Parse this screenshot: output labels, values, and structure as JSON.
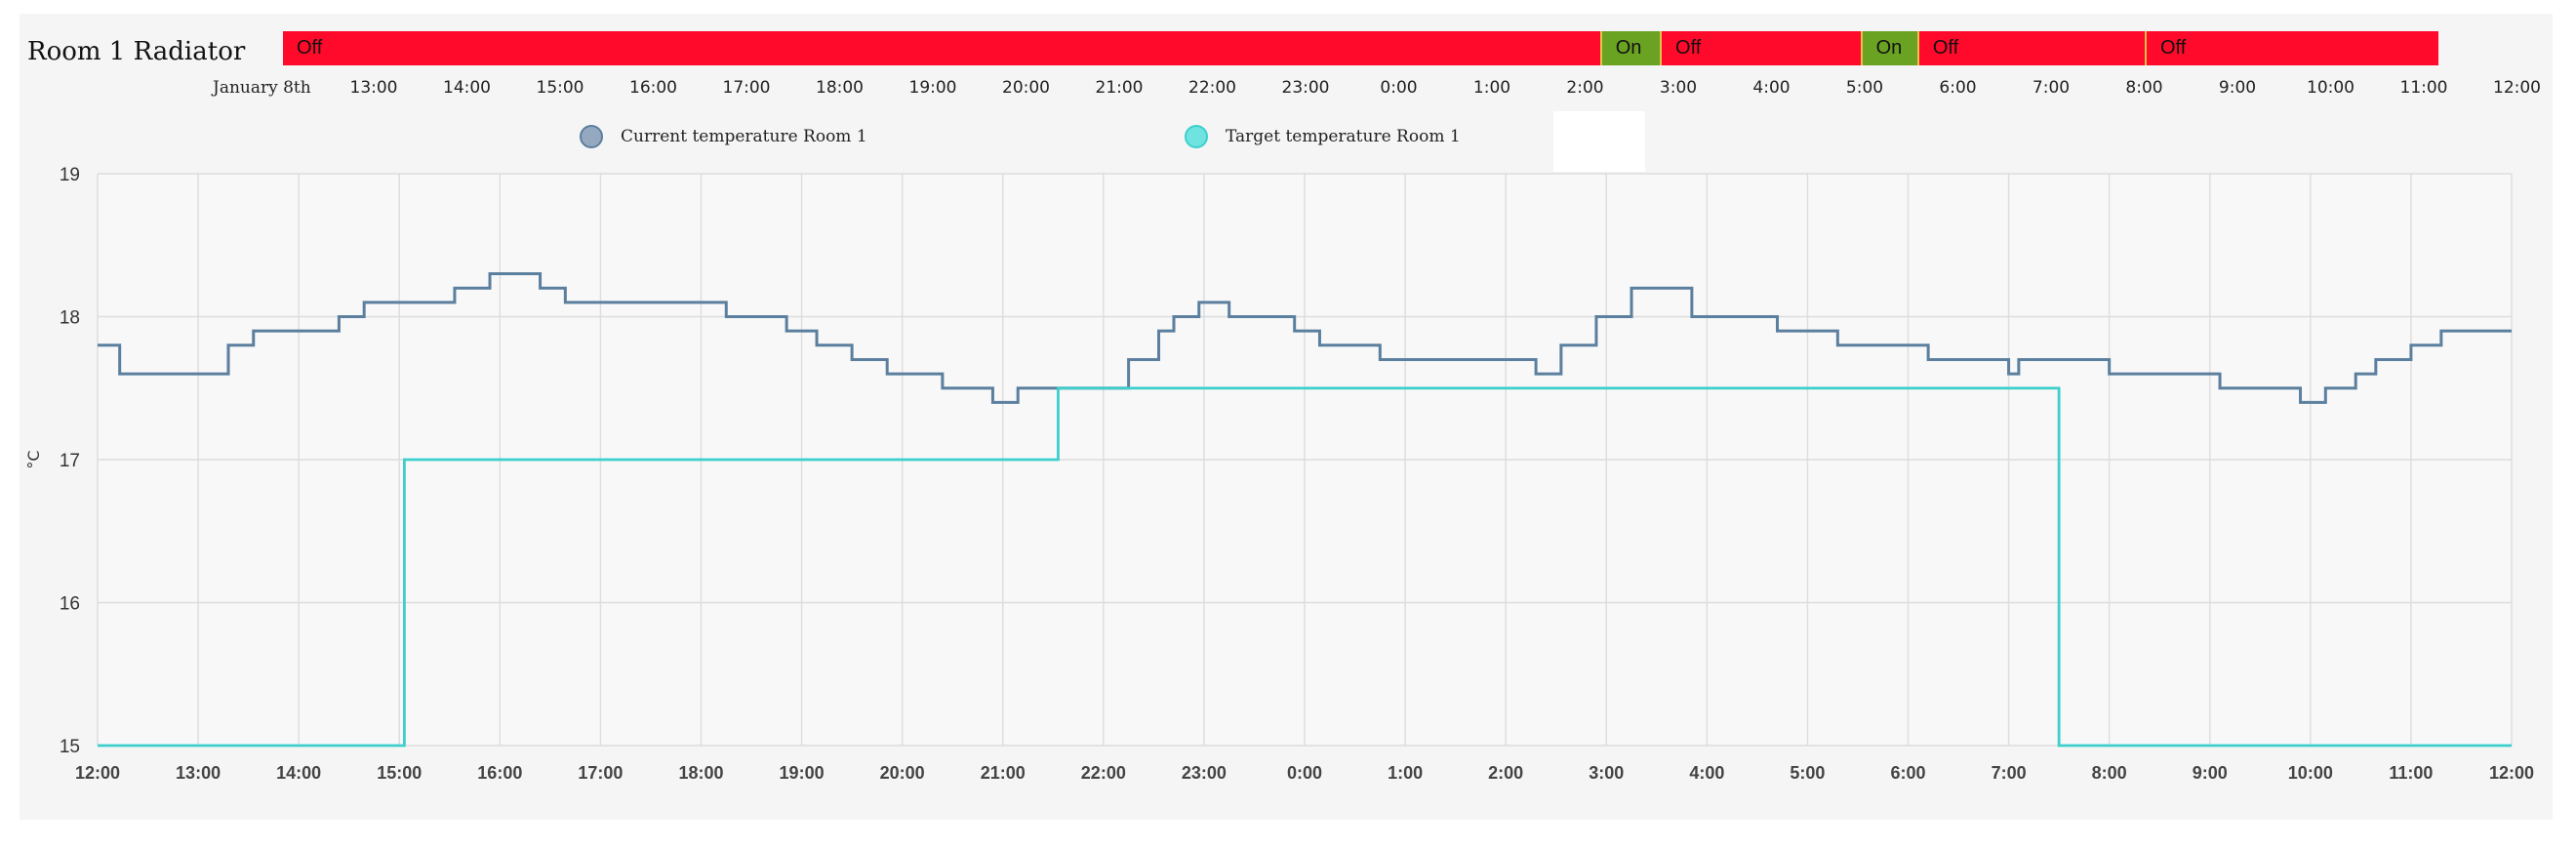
{
  "title": "Room 1 Radiator",
  "timeline": {
    "date_label": "January 8th",
    "ticks": [
      "13:00",
      "14:00",
      "15:00",
      "16:00",
      "17:00",
      "18:00",
      "19:00",
      "20:00",
      "21:00",
      "22:00",
      "23:00",
      "0:00",
      "1:00",
      "2:00",
      "3:00",
      "4:00",
      "5:00",
      "6:00",
      "7:00",
      "8:00",
      "9:00",
      "10:00",
      "11:00",
      "12:00"
    ],
    "segments": [
      {
        "label": "Off",
        "start": 0,
        "end": 22.0
      },
      {
        "label": "On",
        "start": 22.0,
        "end": 23.0
      },
      {
        "label": "Off",
        "start": 23.0,
        "end": 26.35
      },
      {
        "label": "On",
        "start": 26.35,
        "end": 27.3
      },
      {
        "label": "Off",
        "start": 27.3,
        "end": 31.1
      },
      {
        "label": "Off",
        "start": 31.1,
        "end": 36.0
      }
    ],
    "colors": {
      "Off": "#ff0a2a",
      "On": "#6aa222"
    }
  },
  "chart_data": {
    "type": "line",
    "step": true,
    "title": "",
    "ylabel": "°C",
    "xlabel": "",
    "ylim": [
      15,
      19
    ],
    "yticks": [
      15,
      16,
      17,
      18,
      19
    ],
    "x_units": "hours after 12:00 on January 8th",
    "xlim": [
      0,
      24
    ],
    "xtick_labels": [
      "12:00",
      "13:00",
      "14:00",
      "15:00",
      "16:00",
      "17:00",
      "18:00",
      "19:00",
      "20:00",
      "21:00",
      "22:00",
      "23:00",
      "0:00",
      "1:00",
      "2:00",
      "3:00",
      "4:00",
      "5:00",
      "6:00",
      "7:00",
      "8:00",
      "9:00",
      "10:00",
      "11:00",
      "12:00"
    ],
    "grid": true,
    "legend": "top",
    "series": [
      {
        "name": "Current temperature Room 1",
        "color": "#5b7f9e",
        "marker_color": "#94a9c0",
        "points": [
          [
            0,
            17.8
          ],
          [
            0.22,
            17.6
          ],
          [
            1.3,
            17.8
          ],
          [
            1.55,
            17.9
          ],
          [
            2.4,
            18.0
          ],
          [
            2.65,
            18.1
          ],
          [
            3.55,
            18.2
          ],
          [
            3.9,
            18.3
          ],
          [
            4.4,
            18.2
          ],
          [
            4.65,
            18.1
          ],
          [
            6.25,
            18.0
          ],
          [
            6.85,
            17.9
          ],
          [
            7.15,
            17.8
          ],
          [
            7.5,
            17.7
          ],
          [
            7.85,
            17.6
          ],
          [
            8.4,
            17.5
          ],
          [
            8.9,
            17.4
          ],
          [
            9.15,
            17.5
          ],
          [
            10.25,
            17.7
          ],
          [
            10.55,
            17.9
          ],
          [
            10.7,
            18.0
          ],
          [
            10.95,
            18.1
          ],
          [
            11.25,
            18.0
          ],
          [
            11.9,
            17.9
          ],
          [
            12.15,
            17.8
          ],
          [
            12.75,
            17.7
          ],
          [
            14.3,
            17.6
          ],
          [
            14.55,
            17.8
          ],
          [
            14.9,
            18.0
          ],
          [
            15.25,
            18.2
          ],
          [
            15.85,
            18.0
          ],
          [
            16.7,
            17.9
          ],
          [
            17.3,
            17.8
          ],
          [
            18.2,
            17.7
          ],
          [
            19.0,
            17.6
          ],
          [
            19.1,
            17.7
          ],
          [
            20.0,
            17.6
          ],
          [
            21.1,
            17.5
          ],
          [
            21.9,
            17.4
          ],
          [
            22.15,
            17.5
          ],
          [
            22.45,
            17.6
          ],
          [
            22.65,
            17.7
          ],
          [
            23.0,
            17.8
          ],
          [
            23.3,
            17.9
          ],
          [
            24,
            17.9
          ]
        ]
      },
      {
        "name": "Target temperature Room 1",
        "color": "#3dcfcc",
        "marker_color": "#6fe3e0",
        "points": [
          [
            0,
            15.0
          ],
          [
            3.05,
            17.0
          ],
          [
            9.55,
            17.5
          ],
          [
            19.5,
            15.0
          ],
          [
            24,
            15.0
          ]
        ]
      }
    ]
  }
}
